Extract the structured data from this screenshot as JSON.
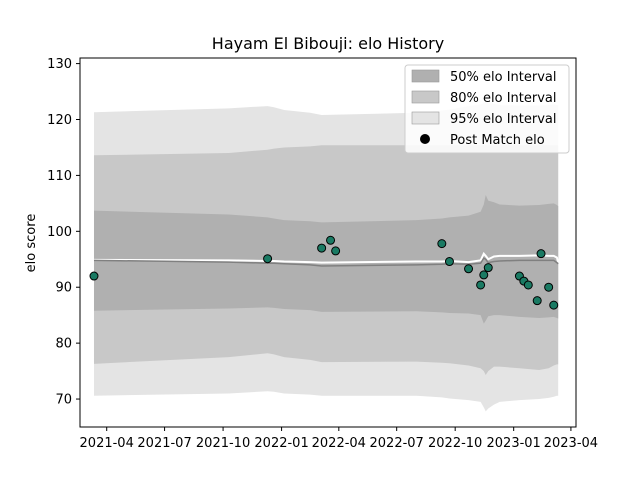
{
  "chart_data": {
    "type": "area",
    "title": "Hayam El Bibouji: elo History",
    "xlabel": "",
    "ylabel": "elo score",
    "xlim": [
      "2021-02-18",
      "2023-04-09"
    ],
    "ylim": [
      65,
      131
    ],
    "yticks": [
      70,
      80,
      90,
      100,
      110,
      120,
      130
    ],
    "xticks": [
      "2021-04",
      "2021-07",
      "2021-10",
      "2022-01",
      "2022-04",
      "2022-07",
      "2022-10",
      "2023-01",
      "2023-04"
    ],
    "grid": false,
    "legend_position": "top-right",
    "colors": {
      "band50": "#b0b0b0",
      "band80": "#c8c8c8",
      "band95": "#e4e4e4",
      "mean_line": "#808080",
      "upper_line": "#ffffff",
      "marker_fill": "#1a7a63",
      "marker_edge": "#000000"
    },
    "bands": {
      "x": [
        "2021-03-12",
        "2021-10-10",
        "2021-12-10",
        "2021-12-20",
        "2022-01-05",
        "2022-02-15",
        "2022-03-05",
        "2022-08-01",
        "2022-09-10",
        "2022-09-22",
        "2022-10-22",
        "2022-11-10",
        "2022-11-15",
        "2022-11-18",
        "2022-11-22",
        "2022-12-01",
        "2022-12-10",
        "2023-01-10",
        "2023-02-10",
        "2023-02-25",
        "2023-03-05",
        "2023-03-10",
        "2023-03-12"
      ],
      "mean": [
        94.8,
        94.5,
        94.3,
        94.3,
        94.2,
        94.0,
        93.8,
        94.0,
        94.1,
        94.2,
        94.1,
        94.3,
        95.2,
        95.0,
        94.4,
        94.6,
        94.7,
        94.8,
        94.8,
        94.8,
        94.8,
        94.4,
        94.2
      ],
      "upper_line": [
        94.9,
        94.8,
        94.7,
        94.7,
        94.6,
        94.5,
        94.4,
        94.6,
        94.6,
        94.7,
        94.5,
        94.8,
        96.0,
        95.6,
        95.0,
        95.5,
        95.6,
        95.6,
        95.7,
        95.6,
        95.6,
        95.3,
        94.4
      ],
      "band50_lo": [
        85.8,
        86.2,
        86.4,
        86.3,
        86.1,
        85.9,
        85.6,
        85.7,
        85.5,
        85.4,
        85.3,
        85.0,
        83.5,
        84.0,
        84.8,
        85.0,
        85.0,
        84.7,
        84.5,
        84.6,
        84.7,
        84.5,
        84.4
      ],
      "band50_hi": [
        103.7,
        103.0,
        102.5,
        102.3,
        102.0,
        101.8,
        101.6,
        102.0,
        102.3,
        102.5,
        102.8,
        103.5,
        104.8,
        106.5,
        105.5,
        105.2,
        104.8,
        104.6,
        104.7,
        104.9,
        105.0,
        104.7,
        104.5
      ],
      "band80_lo": [
        76.3,
        77.5,
        78.2,
        78.0,
        77.5,
        77.0,
        76.6,
        76.7,
        76.5,
        76.4,
        76.0,
        75.5,
        75.0,
        74.3,
        75.0,
        75.8,
        75.8,
        75.5,
        75.2,
        75.5,
        76.0,
        76.2,
        76.2
      ],
      "band80_hi": [
        113.6,
        114.0,
        114.6,
        114.8,
        115.0,
        115.2,
        115.4,
        115.4,
        115.4,
        115.4,
        115.4,
        115.4,
        115.4,
        115.4,
        115.4,
        115.4,
        115.4,
        115.4,
        115.4,
        115.4,
        115.4,
        115.4,
        115.4
      ],
      "band95_lo": [
        70.6,
        71.0,
        71.4,
        71.3,
        71.0,
        70.8,
        70.6,
        70.6,
        70.3,
        70.1,
        69.8,
        69.5,
        68.5,
        67.8,
        68.3,
        69.0,
        69.5,
        69.8,
        70.0,
        70.2,
        70.4,
        70.6,
        70.6
      ],
      "band95_hi": [
        121.3,
        122.0,
        122.4,
        122.2,
        121.7,
        121.2,
        120.8,
        121.2,
        121.6,
        121.8,
        122.4,
        122.7,
        123.0,
        123.2,
        123.0,
        122.8,
        122.6,
        122.5,
        122.5,
        122.6,
        122.7,
        122.6,
        122.6
      ]
    },
    "points": {
      "name": "Post Match elo",
      "x": [
        "2021-03-12",
        "2021-12-10",
        "2022-03-05",
        "2022-03-19",
        "2022-03-27",
        "2022-09-10",
        "2022-09-22",
        "2022-10-22",
        "2022-11-10",
        "2022-11-15",
        "2022-11-22",
        "2023-01-10",
        "2023-01-17",
        "2023-01-24",
        "2023-02-07",
        "2023-02-13",
        "2023-02-25",
        "2023-03-05"
      ],
      "y": [
        92.0,
        95.1,
        97.0,
        98.4,
        96.5,
        97.8,
        94.6,
        93.3,
        90.4,
        92.2,
        93.5,
        92.0,
        91.1,
        90.4,
        87.6,
        96.0,
        90.0,
        86.8
      ]
    },
    "legend": [
      {
        "key": "band50",
        "label": "50% elo Interval"
      },
      {
        "key": "band80",
        "label": "80% elo Interval"
      },
      {
        "key": "band95",
        "label": "95% elo Interval"
      },
      {
        "key": "points",
        "label": "Post Match elo"
      }
    ]
  }
}
